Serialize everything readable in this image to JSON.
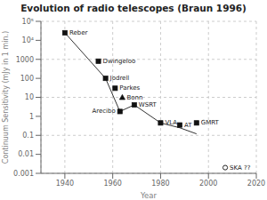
{
  "chart_data": {
    "type": "scatter",
    "title": "Evolution of radio telescopes (Braun 1996)",
    "xlabel": "Year",
    "ylabel": "Continuum Sensitivity (mJy in 1 min.)",
    "xlim": [
      1930,
      2020
    ],
    "xticks": [
      1940,
      1960,
      1980,
      2000,
      2020
    ],
    "ylim": [
      0.001,
      100000
    ],
    "yticks": [
      0.001,
      0.01,
      0.1,
      1,
      10,
      100,
      1000,
      {
        "value": 10000,
        "label": "10⁴"
      },
      {
        "value": 100000,
        "label": "10⁵"
      }
    ],
    "log": "y",
    "grid": true,
    "series": [
      {
        "type": "scatter",
        "marker": "square",
        "color": "#111111",
        "x": [
          1940,
          1954,
          1957,
          1961,
          1969,
          1963,
          1980,
          1988,
          1995
        ],
        "values": [
          25000,
          800,
          100,
          30,
          4,
          1.8,
          0.45,
          0.35,
          0.45
        ]
      },
      {
        "type": "scatter",
        "marker": "triangle",
        "color": "#111111",
        "x": [
          1964
        ],
        "values": [
          10
        ]
      },
      {
        "type": "scatter",
        "marker": "open_circle",
        "color": "#111111",
        "x": [
          2007
        ],
        "values": [
          0.002
        ]
      },
      {
        "type": "line",
        "color": "#333333",
        "x": [
          1940,
          1957,
          1963,
          1969,
          1980
        ],
        "values": [
          25000,
          100,
          1.8,
          4,
          0.45
        ]
      },
      {
        "type": "line",
        "color": "#333333",
        "x": [
          1980,
          1988,
          1995
        ],
        "values": [
          0.45,
          0.25,
          0.12
        ]
      }
    ],
    "annotations": [
      {
        "text": "Reber",
        "x": 1940,
        "y": 25000,
        "position": "right"
      },
      {
        "text": "Dwingeloo",
        "x": 1954,
        "y": 800,
        "position": "right"
      },
      {
        "text": "Jodrell",
        "x": 1957,
        "y": 100,
        "position": "right"
      },
      {
        "text": "Parkes",
        "x": 1961,
        "y": 30,
        "position": "right"
      },
      {
        "text": "Bonn",
        "x": 1964,
        "y": 10,
        "position": "right"
      },
      {
        "text": "WSRT",
        "x": 1969,
        "y": 4,
        "position": "right"
      },
      {
        "text": "Arecibo",
        "x": 1963,
        "y": 1.8,
        "position": "left"
      },
      {
        "text": "VLA",
        "x": 1980,
        "y": 0.45,
        "position": "right"
      },
      {
        "text": "AT",
        "x": 1988,
        "y": 0.35,
        "position": "right"
      },
      {
        "text": "GMRT",
        "x": 1995,
        "y": 0.45,
        "position": "right"
      },
      {
        "text": "SKA ??",
        "x": 2007,
        "y": 0.002,
        "position": "right"
      }
    ]
  }
}
